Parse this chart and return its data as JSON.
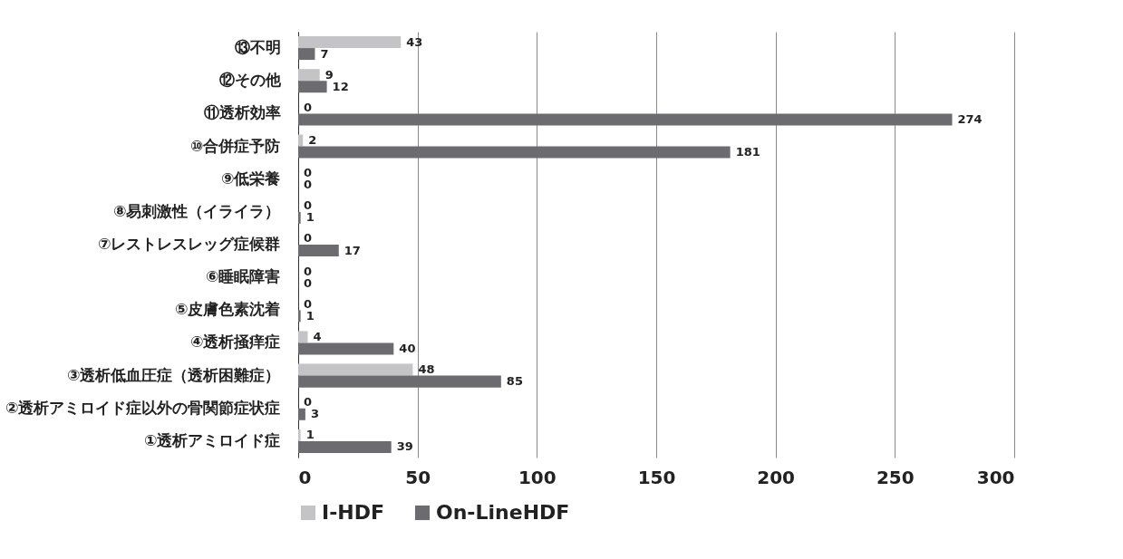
{
  "chart_data": {
    "type": "bar",
    "orientation": "horizontal",
    "categories": [
      "⑬不明",
      "⑫その他",
      "⑪透析効率",
      "⑩合併症予防",
      "⑨低栄養",
      "⑧易刺激性（イライラ）",
      "⑦レストレスレッグ症候群",
      "⑥睡眠障害",
      "⑤皮膚色素沈着",
      "④透析掻痒症",
      "③透析低血圧症（透析困難症）",
      "②透析アミロイド症以外の骨関節症状症",
      "①透析アミロイド症"
    ],
    "series": [
      {
        "name": "I-HDF",
        "color": "#c4c4c6",
        "values": [
          43,
          9,
          0,
          2,
          0,
          0,
          0,
          0,
          0,
          4,
          48,
          0,
          1
        ]
      },
      {
        "name": "On-LineHDF",
        "color": "#6c6c70",
        "values": [
          7,
          12,
          274,
          181,
          0,
          1,
          17,
          0,
          1,
          40,
          85,
          3,
          39
        ]
      }
    ],
    "xlim": [
      0,
      300
    ],
    "xticks": [
      0,
      50,
      100,
      150,
      200,
      250,
      300
    ],
    "grid": "x",
    "legend": "bottom",
    "data_labels": true
  }
}
